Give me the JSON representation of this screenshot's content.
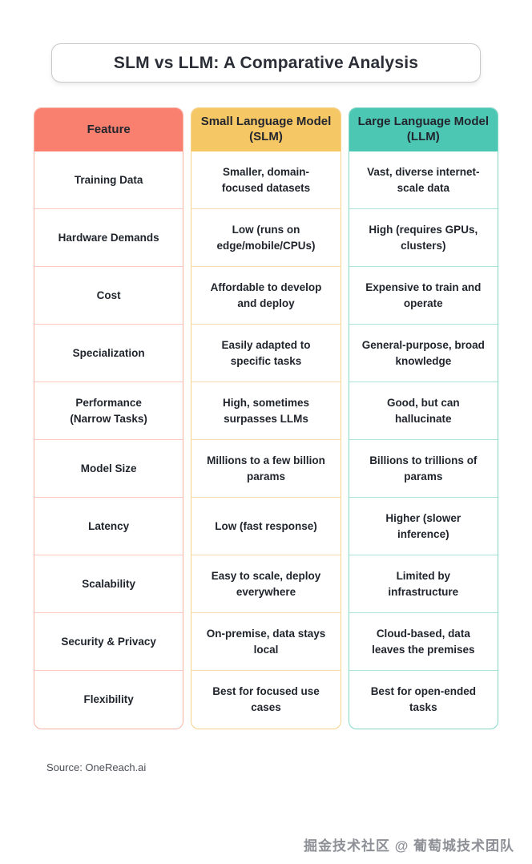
{
  "title": "SLM vs LLM: A Comparative Analysis",
  "source": "Source: OneReach.ai",
  "watermark": "掘金技术社区 @ 葡萄城技术团队",
  "colors": {
    "feature_header": "#F97F6E",
    "slm_header": "#F6C765",
    "llm_header": "#4CC7B3",
    "title_border": "#C9C9C9",
    "text": "#1F232B"
  },
  "chart_data": {
    "type": "table",
    "title": "SLM vs LLM: A Comparative Analysis",
    "columns": [
      "Feature",
      "Small Language Model (SLM)",
      "Large Language Model (LLM)"
    ],
    "rows": [
      [
        "Training Data",
        "Smaller, domain-focused datasets",
        "Vast, diverse internet-scale data"
      ],
      [
        "Hardware Demands",
        "Low (runs on edge/mobile/CPUs)",
        "High (requires GPUs, clusters)"
      ],
      [
        "Cost",
        "Affordable to develop and deploy",
        "Expensive to train and operate"
      ],
      [
        "Specialization",
        "Easily adapted to specific tasks",
        "General-purpose, broad knowledge"
      ],
      [
        "Performance (Narrow Tasks)",
        "High, sometimes surpasses LLMs",
        "Good, but can hallucinate"
      ],
      [
        "Model Size",
        "Millions to a few billion params",
        "Billions to trillions of params"
      ],
      [
        "Latency",
        "Low (fast response)",
        "Higher (slower inference)"
      ],
      [
        "Scalability",
        "Easy to scale, deploy everywhere",
        "Limited by infrastructure"
      ],
      [
        "Security & Privacy",
        "On-premise, data stays local",
        "Cloud-based, data leaves the premises"
      ],
      [
        "Flexibility",
        "Best for focused use cases",
        "Best for open-ended tasks"
      ]
    ],
    "legend": false,
    "grid": "row-separators"
  }
}
